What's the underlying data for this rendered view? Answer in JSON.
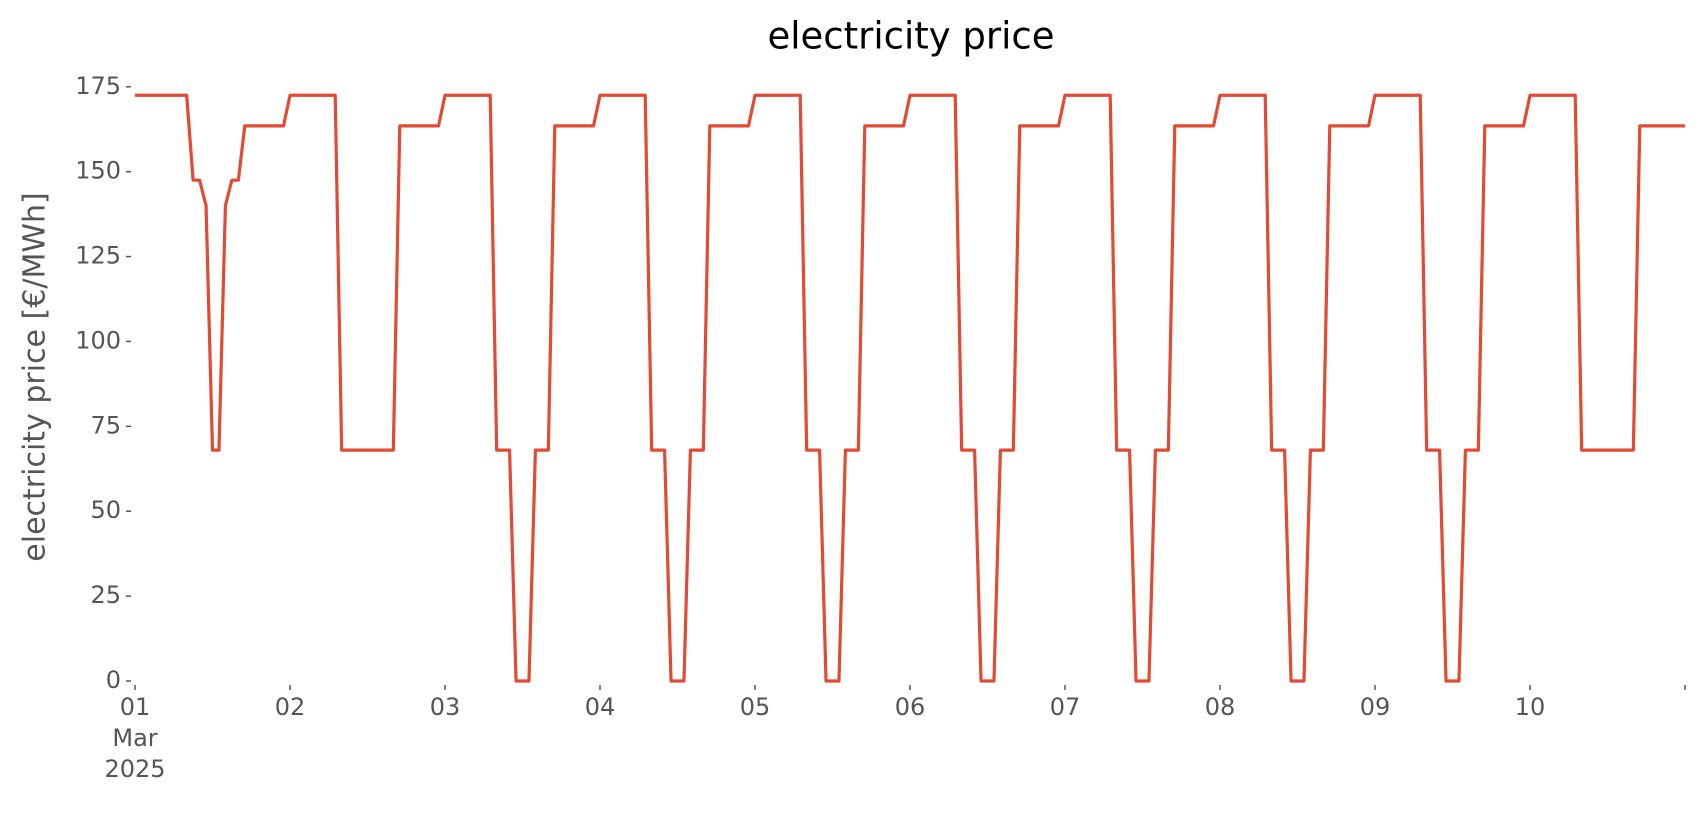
{
  "chart_data": {
    "type": "line",
    "title": "electricity price",
    "ylabel": "electricity price [€/MWh]",
    "x": [
      0,
      8,
      9,
      10,
      11,
      12,
      13,
      14,
      15,
      16,
      17,
      23,
      24,
      31,
      32,
      40,
      41,
      47,
      48,
      55,
      56,
      58,
      59,
      61,
      62,
      64,
      65,
      71,
      72,
      79,
      80,
      82,
      83,
      85,
      86,
      88,
      89,
      95,
      96,
      103,
      104,
      106,
      107,
      109,
      110,
      112,
      113,
      119,
      120,
      127,
      128,
      130,
      131,
      133,
      134,
      136,
      137,
      143,
      144,
      151,
      152,
      154,
      155,
      157,
      158,
      160,
      161,
      167,
      168,
      175,
      176,
      178,
      179,
      181,
      182,
      184,
      185,
      191,
      192,
      199,
      200,
      202,
      203,
      205,
      206,
      208,
      209,
      215,
      216,
      223,
      224,
      232,
      233,
      240
    ],
    "series": [
      {
        "color": "#E24A33",
        "values": [
          172.5,
          172.5,
          147.5,
          147.5,
          140,
          68,
          68,
          140,
          147.5,
          147.5,
          163.5,
          163.5,
          172.5,
          172.5,
          68,
          68,
          163.5,
          163.5,
          172.5,
          172.5,
          68,
          68,
          0,
          0,
          68,
          68,
          163.5,
          163.5,
          172.5,
          172.5,
          68,
          68,
          0,
          0,
          68,
          68,
          163.5,
          163.5,
          172.5,
          172.5,
          68,
          68,
          0,
          0,
          68,
          68,
          163.5,
          163.5,
          172.5,
          172.5,
          68,
          68,
          0,
          0,
          68,
          68,
          163.5,
          163.5,
          172.5,
          172.5,
          68,
          68,
          0,
          0,
          68,
          68,
          163.5,
          163.5,
          172.5,
          172.5,
          68,
          68,
          0,
          0,
          68,
          68,
          163.5,
          163.5,
          172.5,
          172.5,
          68,
          68,
          0,
          0,
          68,
          68,
          163.5,
          163.5,
          172.5,
          172.5,
          68,
          68,
          163.5,
          163.5
        ]
      }
    ],
    "xlim": [
      0,
      240
    ],
    "xticks": [
      {
        "value": 0,
        "label": "01\nMar\n2025"
      },
      {
        "value": 24,
        "label": "02"
      },
      {
        "value": 48,
        "label": "03"
      },
      {
        "value": 72,
        "label": "04"
      },
      {
        "value": 96,
        "label": "05"
      },
      {
        "value": 120,
        "label": "06"
      },
      {
        "value": 144,
        "label": "07"
      },
      {
        "value": 168,
        "label": "08"
      },
      {
        "value": 192,
        "label": "09"
      },
      {
        "value": 216,
        "label": "10"
      },
      {
        "value": 240,
        "label": null
      }
    ],
    "ylim": [
      0,
      177
    ],
    "yticks": [
      0,
      25,
      50,
      75,
      100,
      125,
      150,
      175
    ]
  }
}
